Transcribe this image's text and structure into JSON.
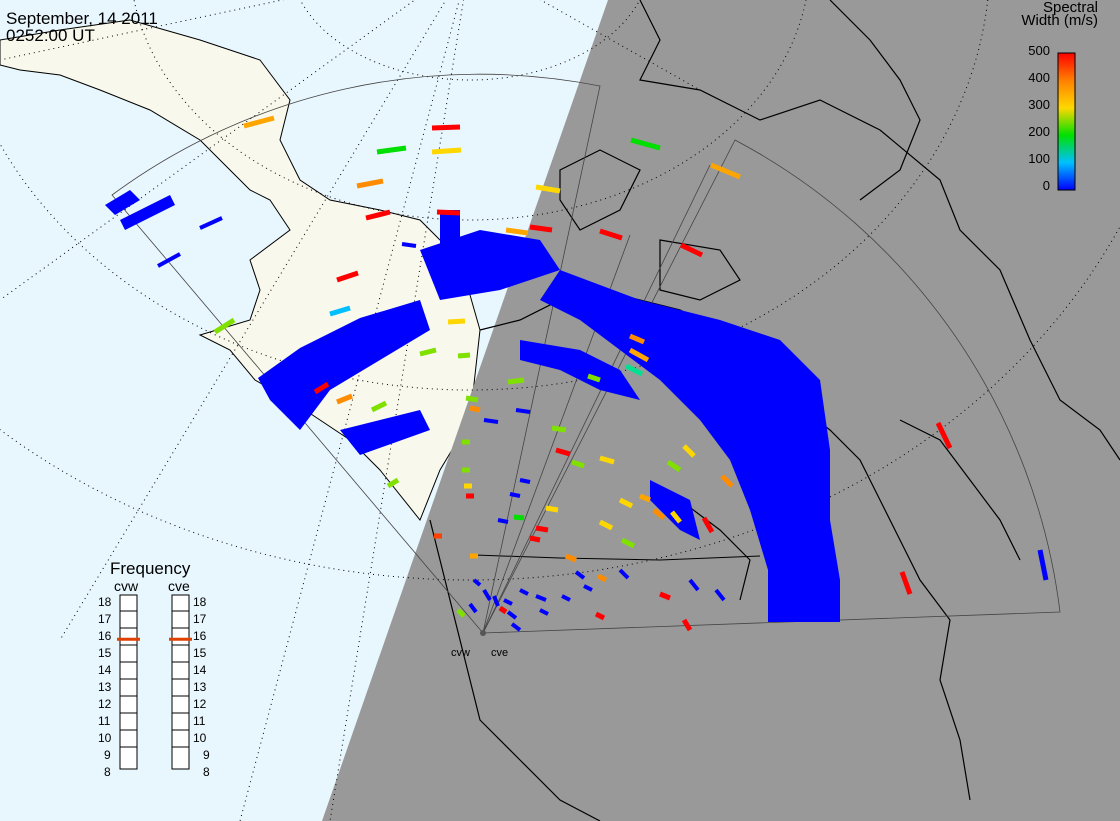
{
  "header": {
    "date": "September, 14 2011",
    "time": "0252:00 UT"
  },
  "colorbar": {
    "title_line1": "Spectral",
    "title_line2": "Width (m/s)",
    "ticks": [
      "500",
      "400",
      "300",
      "200",
      "100",
      "0"
    ],
    "colors": [
      "#ff0000",
      "#ff8000",
      "#ffd700",
      "#00e000",
      "#00c0ff",
      "#0000ff"
    ]
  },
  "frequency_panel": {
    "title": "Frequency",
    "radars": [
      {
        "name": "cvw",
        "value": 15
      },
      {
        "name": "cve",
        "value": 15
      }
    ],
    "scale": [
      "18",
      "17",
      "16",
      "15",
      "14",
      "13",
      "12",
      "11",
      "10",
      "9",
      "8"
    ],
    "marker_color": "#e04000"
  },
  "sites": [
    {
      "label": "cvw"
    },
    {
      "label": "cve"
    }
  ],
  "map": {
    "ocean_day_color": "#e8f6fd",
    "land_day_color": "#f8f8ec",
    "night_color": "#999999",
    "coast_color": "#000000"
  }
}
